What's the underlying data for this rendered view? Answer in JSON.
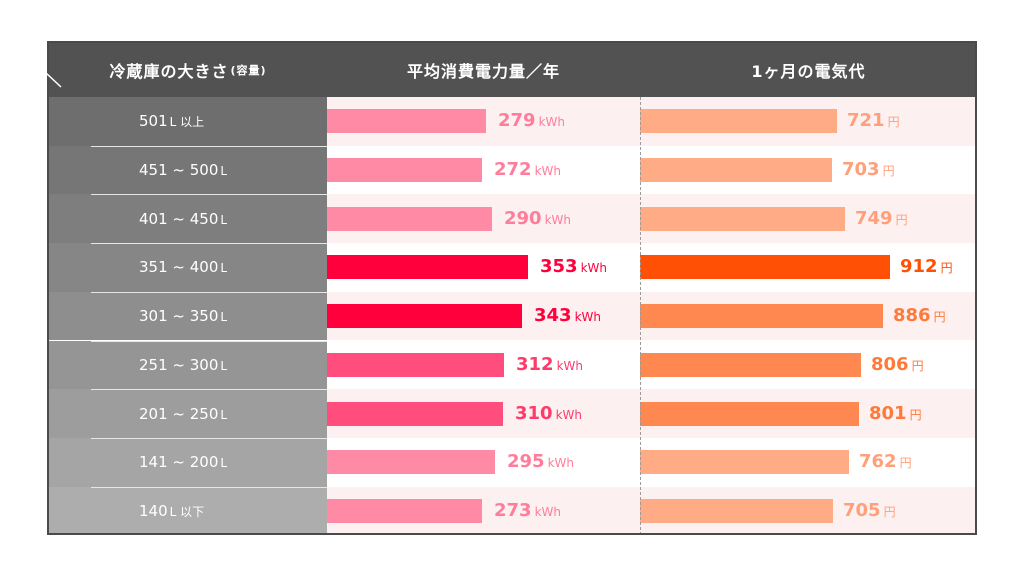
{
  "headers": {
    "size": "冷蔵庫の大きさ",
    "size_note": "(容量)",
    "power": "平均消費電力量／年",
    "cost": "1ヶ月の電気代"
  },
  "units": {
    "energy": "kWh",
    "yen": "円"
  },
  "rows": [
    {
      "label": "501",
      "suffix": "L 以上"
    },
    {
      "label": "451 ~ 500",
      "suffix": "L"
    },
    {
      "label": "401 ~ 450",
      "suffix": "L"
    },
    {
      "label": "351 ~ 400",
      "suffix": "L"
    },
    {
      "label": "301 ~ 350",
      "suffix": "L"
    },
    {
      "label": "251 ~ 300",
      "suffix": "L"
    },
    {
      "label": "201 ~ 250",
      "suffix": "L"
    },
    {
      "label": "141 ~ 200",
      "suffix": "L"
    },
    {
      "label": "140",
      "suffix": "L 以下"
    }
  ],
  "chart_data": {
    "type": "bar",
    "categories": [
      "501L以上",
      "451~500L",
      "401~450L",
      "351~400L",
      "301~350L",
      "251~300L",
      "201~250L",
      "141~200L",
      "140L以下"
    ],
    "series": [
      {
        "name": "平均消費電力量／年",
        "unit": "kWh",
        "values": [
          279,
          272,
          290,
          353,
          343,
          312,
          310,
          295,
          273
        ]
      },
      {
        "name": "1ヶ月の電気代",
        "unit": "円",
        "values": [
          721,
          703,
          749,
          912,
          886,
          806,
          801,
          762,
          705
        ]
      }
    ]
  },
  "colors": {
    "header_bg": "#525252",
    "power_light": "#ff8aa5",
    "power_mid": "#ff4d7d",
    "power_strong": "#ff003c",
    "cost_light": "#ffab85",
    "cost_mid": "#ff8850",
    "cost_strong": "#ff5005"
  }
}
